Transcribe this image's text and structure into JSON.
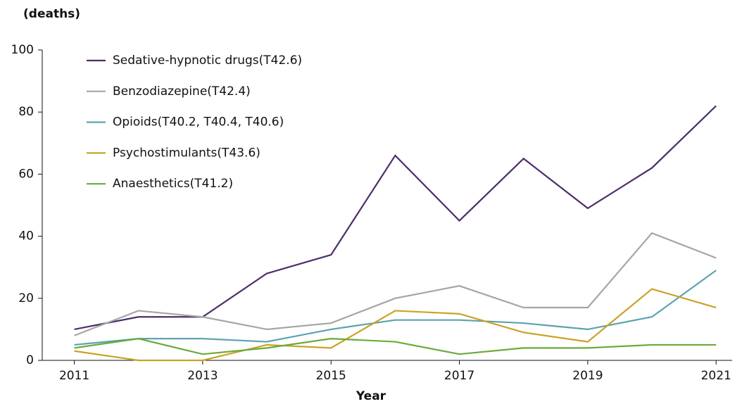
{
  "chart_data": {
    "type": "line",
    "y_label": "(deaths)",
    "x_label": "Year",
    "x": [
      2011,
      2012,
      2013,
      2014,
      2015,
      2016,
      2017,
      2018,
      2019,
      2020,
      2021
    ],
    "series": [
      {
        "name": "Sedative-hypnotic drugs(T42.6)",
        "color": "#4b2d6b",
        "values": [
          10,
          14,
          14,
          28,
          34,
          66,
          45,
          65,
          49,
          62,
          82
        ]
      },
      {
        "name": "Benzodiazepine(T42.4)",
        "color": "#a6a6a6",
        "values": [
          8,
          16,
          14,
          10,
          12,
          20,
          24,
          17,
          17,
          41,
          33
        ]
      },
      {
        "name": "Opioids(T40.2, T40.4, T40.6)",
        "color": "#5ba3b0",
        "values": [
          5,
          7,
          7,
          6,
          10,
          13,
          13,
          12,
          10,
          14,
          29
        ]
      },
      {
        "name": "Psychostimulants(T43.6)",
        "color": "#c9a227",
        "values": [
          3,
          0,
          0,
          5,
          4,
          16,
          15,
          9,
          6,
          23,
          17
        ]
      },
      {
        "name": "Anaesthetics(T41.2)",
        "color": "#6aaa3a",
        "values": [
          4,
          7,
          2,
          4,
          7,
          6,
          2,
          4,
          4,
          5,
          5
        ]
      }
    ],
    "xlim": [
      2010.5,
      2021.25
    ],
    "xticks": [
      2011,
      2013,
      2015,
      2017,
      2019,
      2021
    ],
    "ylim": [
      0,
      100
    ],
    "yticks": [
      0,
      20,
      40,
      60,
      80,
      100
    ],
    "grid": false,
    "legend": "upper left"
  }
}
